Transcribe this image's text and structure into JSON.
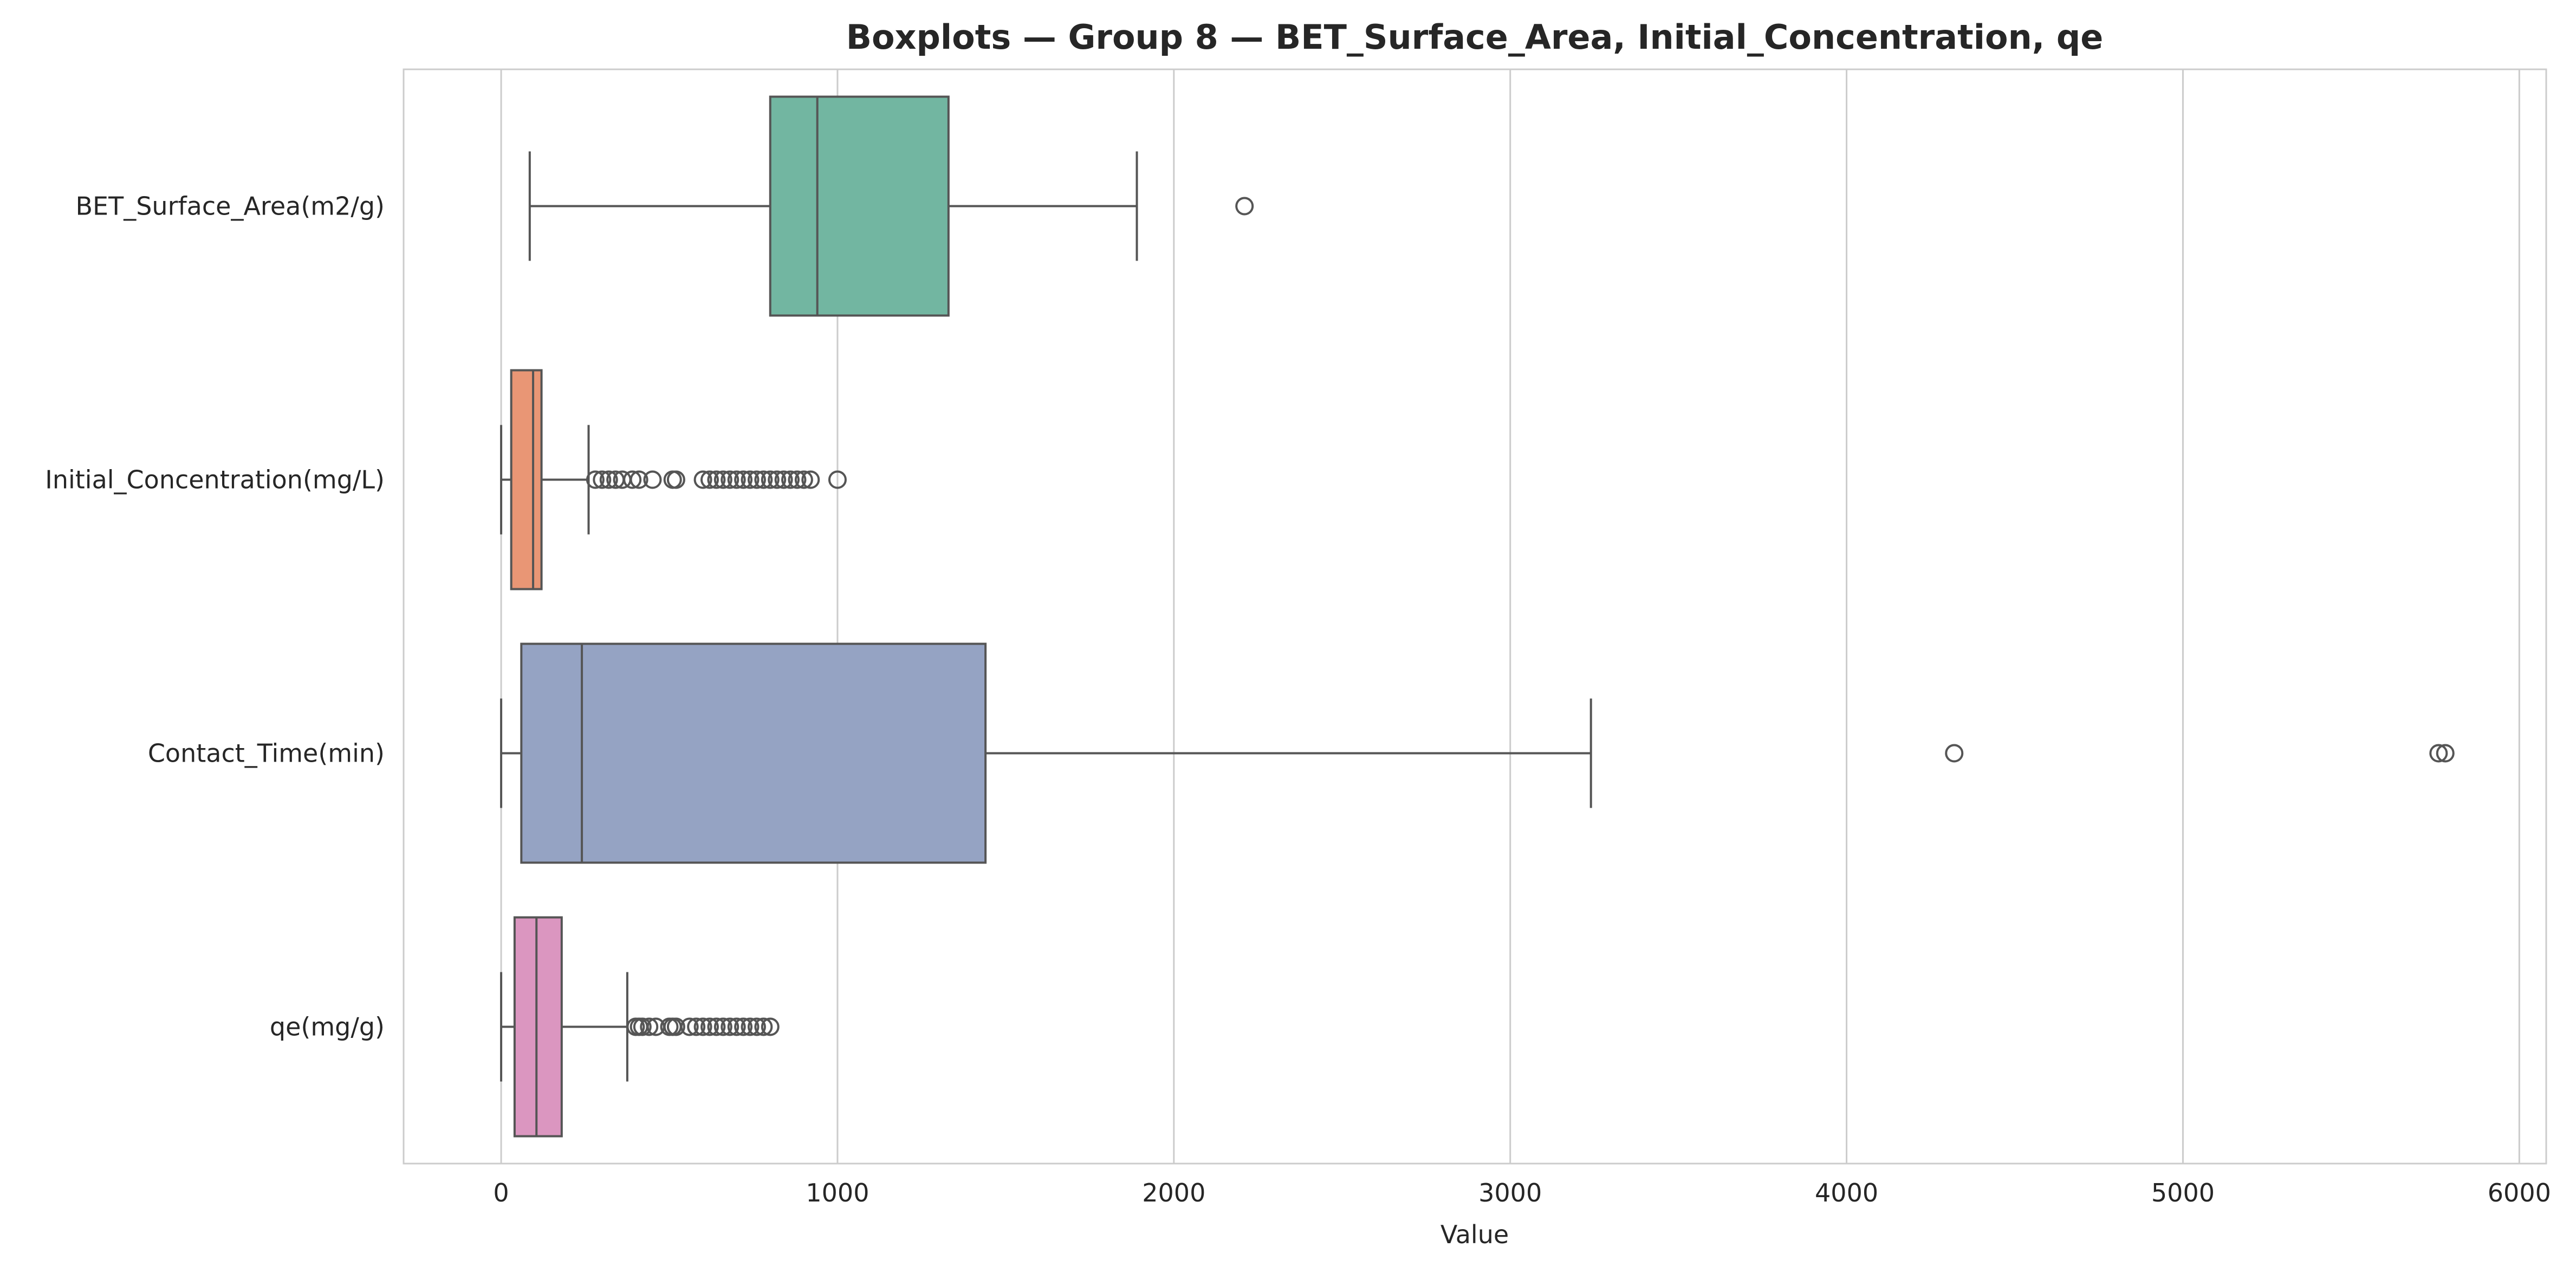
{
  "chart_data": {
    "type": "boxplot",
    "orientation": "horizontal",
    "title": "Boxplots — Group 8 — BET_Surface_Area, Initial_Concentration, qe",
    "xlabel": "Value",
    "ylabel": "",
    "xlim": [
      -290,
      6080
    ],
    "xticks": [
      0,
      1000,
      2000,
      3000,
      4000,
      5000,
      6000
    ],
    "xtick_labels": [
      "0",
      "1000",
      "2000",
      "3000",
      "4000",
      "5000",
      "6000"
    ],
    "grid": "vertical",
    "categories": [
      "BET_Surface_Area(m2/g)",
      "Initial_Concentration(mg/L)",
      "Contact_Time(min)",
      "qe(mg/g)"
    ],
    "series": [
      {
        "name": "BET_Surface_Area(m2/g)",
        "color": "#72b6a1",
        "whisker_low": 85,
        "q1": 800,
        "median": 940,
        "q3": 1330,
        "whisker_high": 1890,
        "outliers": [
          2210
        ]
      },
      {
        "name": "Initial_Concentration(mg/L)",
        "color": "#e99675",
        "whisker_low": 0,
        "q1": 30,
        "median": 95,
        "q3": 120,
        "whisker_high": 260,
        "outliers": [
          280,
          300,
          320,
          340,
          360,
          390,
          410,
          450,
          510,
          520,
          600,
          620,
          640,
          660,
          680,
          700,
          720,
          740,
          760,
          780,
          800,
          820,
          840,
          860,
          880,
          900,
          920,
          1000
        ]
      },
      {
        "name": "Contact_Time(min)",
        "color": "#95a3c3",
        "whisker_low": 0,
        "q1": 60,
        "median": 240,
        "q3": 1440,
        "whisker_high": 3240,
        "outliers": [
          4320,
          5760,
          5780
        ]
      },
      {
        "name": "qe(mg/g)",
        "color": "#db96c0",
        "whisker_low": 0,
        "q1": 40,
        "median": 105,
        "q3": 180,
        "whisker_high": 375,
        "outliers": [
          400,
          410,
          420,
          440,
          460,
          500,
          510,
          520,
          560,
          580,
          600,
          620,
          640,
          660,
          680,
          700,
          720,
          740,
          760,
          780,
          800
        ]
      }
    ]
  }
}
